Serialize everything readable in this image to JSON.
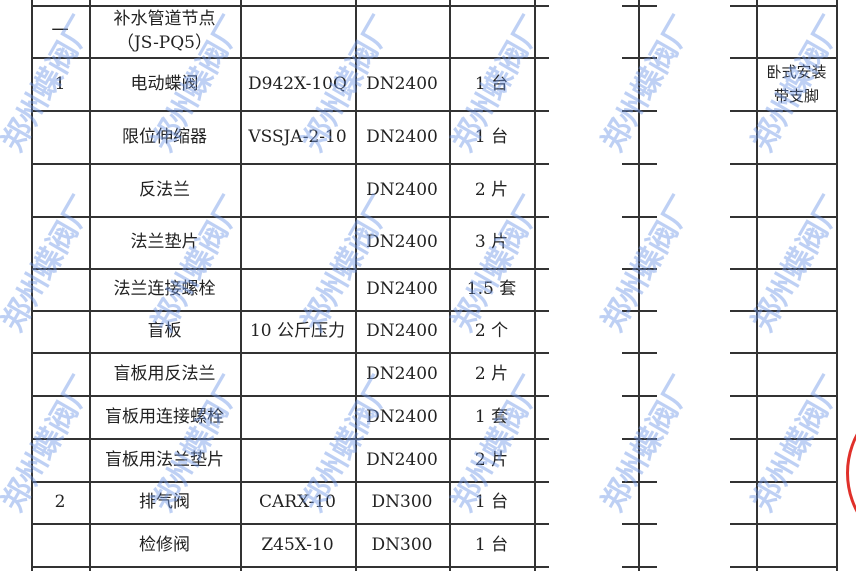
{
  "section": {
    "no": "一",
    "name": "补水管道节点",
    "code": "（JS-PQ5）"
  },
  "rows": [
    {
      "no": "1",
      "name": "电动蝶阀",
      "model": "D942X-10Q",
      "spec": "DN2400",
      "qty": "1 台",
      "note": "卧式安装 带支脚"
    },
    {
      "no": "",
      "name": "限位伸缩器",
      "model": "VSSJA-2-10",
      "spec": "DN2400",
      "qty": "1 台",
      "note": ""
    },
    {
      "no": "",
      "name": "反法兰",
      "model": "",
      "spec": "DN2400",
      "qty": "2 片",
      "note": ""
    },
    {
      "no": "",
      "name": "法兰垫片",
      "model": "",
      "spec": "DN2400",
      "qty": "3 片",
      "note": ""
    },
    {
      "no": "",
      "name": "法兰连接螺栓",
      "model": "",
      "spec": "DN2400",
      "qty": "1.5 套",
      "note": ""
    },
    {
      "no": "",
      "name": "盲板",
      "model": "10 公斤压力",
      "spec": "DN2400",
      "qty": "2 个",
      "note": ""
    },
    {
      "no": "",
      "name": "盲板用反法兰",
      "model": "",
      "spec": "DN2400",
      "qty": "2 片",
      "note": ""
    },
    {
      "no": "",
      "name": "盲板用连接螺栓",
      "model": "",
      "spec": "DN2400",
      "qty": "1 套",
      "note": ""
    },
    {
      "no": "",
      "name": "盲板用法兰垫片",
      "model": "",
      "spec": "DN2400",
      "qty": "2 片",
      "note": ""
    },
    {
      "no": "2",
      "name": "排气阀",
      "model": "CARX-10",
      "spec": "DN300",
      "qty": "1 台",
      "note": ""
    },
    {
      "no": "",
      "name": "检修阀",
      "model": "Z45X-10",
      "spec": "DN300",
      "qty": "1 台",
      "note": ""
    }
  ],
  "watermark": "郑州蝶阀厂",
  "colors": {
    "watermark": "#6e96e6",
    "stamp": "#e0302a"
  }
}
